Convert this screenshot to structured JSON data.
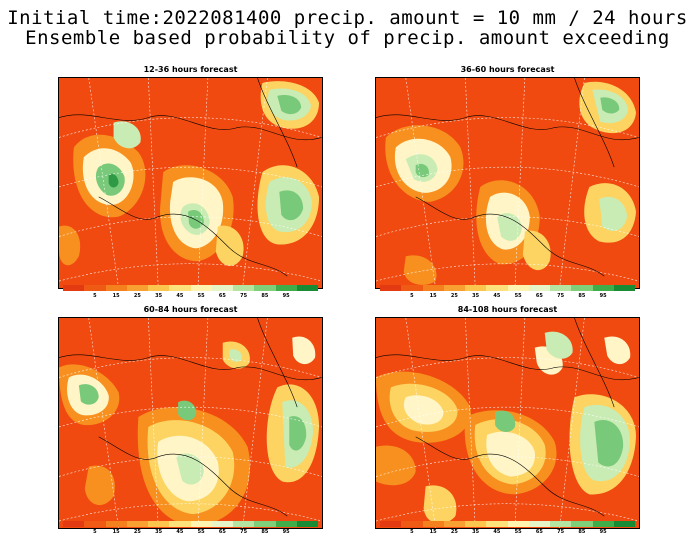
{
  "header": {
    "line1": "Initial time:2022081400 precip. amount = 10 mm / 24 hours",
    "line2": "Ensemble based probability of precip. amount exceeding"
  },
  "panels": [
    {
      "title": "12-36 hours forecast"
    },
    {
      "title": "36-60 hours forecast"
    },
    {
      "title": "60-84 hours forecast"
    },
    {
      "title": "84-108 hours forecast"
    }
  ],
  "legend": {
    "ticks": [
      "5",
      "15",
      "25",
      "35",
      "45",
      "55",
      "65",
      "75",
      "85",
      "95"
    ],
    "colors": [
      "#e33a12",
      "#ef5a14",
      "#f5801e",
      "#f8a032",
      "#fbc54e",
      "#fde27c",
      "#fff3b0",
      "#e6f5c8",
      "#b4e3a2",
      "#7fcf7a",
      "#3fae4a",
      "#178c34"
    ]
  },
  "palette": {
    "background": "#f04a10",
    "orange": "#f8901f",
    "yellow": "#fdd462",
    "cream": "#fff5c6",
    "lightgreen": "#c9ecb4",
    "green": "#79c97a",
    "darkgreen": "#2e9a46"
  }
}
